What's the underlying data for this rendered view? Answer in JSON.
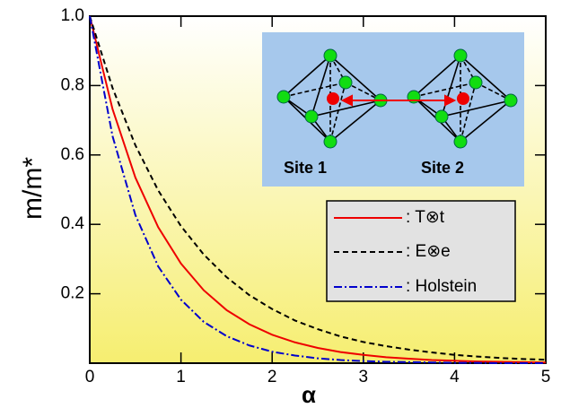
{
  "chart_data": {
    "type": "line",
    "x_label": "α",
    "y_label": "m/m*",
    "annotations": [
      "Site 1",
      "Site 2"
    ],
    "x": [
      0,
      0.25,
      0.5,
      0.75,
      1,
      1.25,
      1.5,
      1.75,
      2,
      2.25,
      2.5,
      2.75,
      3,
      3.25,
      3.5,
      3.75,
      4,
      4.25,
      4.5,
      4.75,
      5
    ],
    "series": [
      {
        "name": ": T⊗t",
        "color": "#ee0000",
        "dash": "solid",
        "values": [
          1,
          0.732,
          0.535,
          0.392,
          0.287,
          0.21,
          0.153,
          0.112,
          0.082,
          0.06,
          0.044,
          0.032,
          0.024,
          0.017,
          0.013,
          0.009,
          0.007,
          0.005,
          0.004,
          0.003,
          0.002
        ]
      },
      {
        "name": ": E⊗e",
        "color": "#000000",
        "dash": "dashed",
        "values": [
          1,
          0.793,
          0.628,
          0.498,
          0.395,
          0.313,
          0.248,
          0.196,
          0.156,
          0.123,
          0.098,
          0.077,
          0.061,
          0.049,
          0.039,
          0.031,
          0.024,
          0.019,
          0.015,
          0.012,
          0.01
        ]
      },
      {
        "name": ": Holstein",
        "color": "#0000cc",
        "dash": "dashdot",
        "values": [
          1,
          0.654,
          0.427,
          0.279,
          0.183,
          0.119,
          0.078,
          0.051,
          0.033,
          0.022,
          0.014,
          0.009,
          0.006,
          0.004,
          0.003,
          0.002,
          0.001,
          0.001,
          0,
          0,
          0
        ]
      }
    ],
    "xlim": [
      0,
      5
    ],
    "ylim": [
      0,
      1
    ],
    "xticks": [
      0,
      1,
      2,
      3,
      4,
      5
    ],
    "yticks": [
      0.2,
      0.4,
      0.6,
      0.8,
      {
        "value": 1,
        "label": "1.0"
      }
    ],
    "legend": "lower right"
  }
}
